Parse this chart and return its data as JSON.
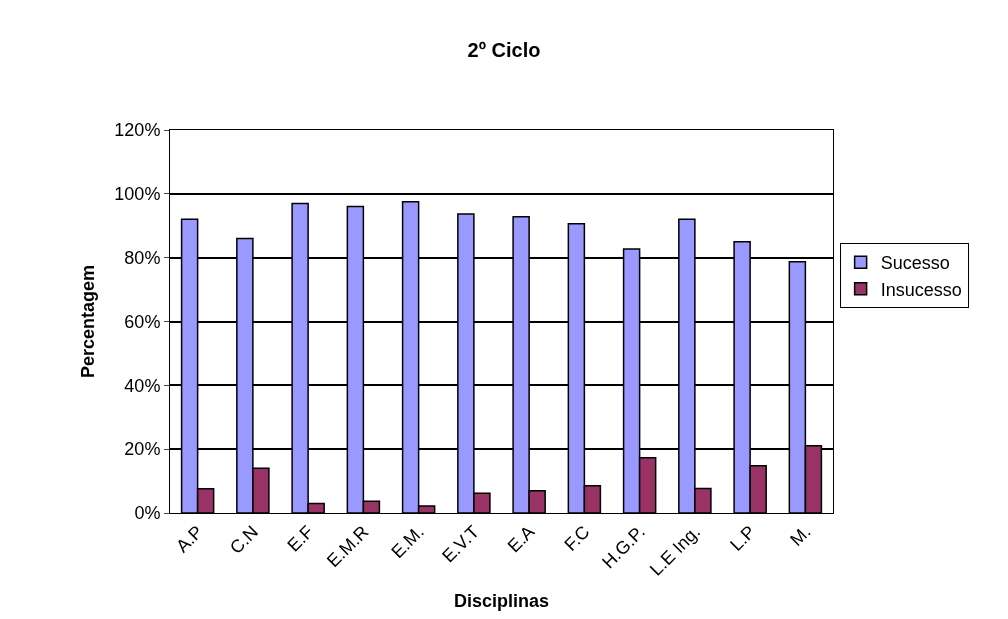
{
  "chart_data": {
    "type": "bar",
    "title": "2º Ciclo",
    "xlabel": "Disciplinas",
    "ylabel": "Percentagem",
    "categories": [
      "A.P",
      "C.N",
      "E.F",
      "E.M.R",
      "E.M.",
      "E.V.T",
      "E.A",
      "F.C",
      "H.G.P.",
      "L.E Ing.",
      "L.P",
      "M."
    ],
    "series": [
      {
        "name": "Sucesso",
        "color": "#9999ff",
        "values": [
          92,
          86,
          97,
          96,
          97.5,
          93.7,
          92.8,
          90.6,
          82.7,
          92,
          85,
          78.7
        ]
      },
      {
        "name": "Insucesso",
        "color": "#993366",
        "values": [
          7.6,
          14,
          3,
          3.7,
          2.2,
          6.2,
          7,
          8.5,
          17.3,
          7.7,
          14.8,
          21.1
        ]
      }
    ],
    "ylim": [
      0,
      120
    ],
    "yticks": [
      {
        "value": 0,
        "label": "0%"
      },
      {
        "value": 20,
        "label": "20%"
      },
      {
        "value": 40,
        "label": "40%"
      },
      {
        "value": 60,
        "label": "60%"
      },
      {
        "value": 80,
        "label": "80%"
      },
      {
        "value": 100,
        "label": "100%"
      },
      {
        "value": 120,
        "label": "120%"
      }
    ],
    "grid": "y",
    "legend": "right"
  }
}
